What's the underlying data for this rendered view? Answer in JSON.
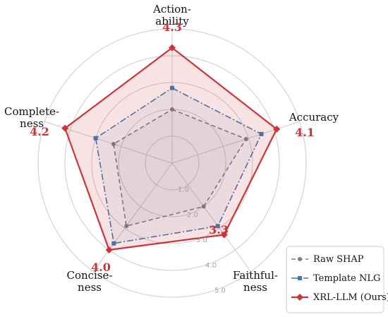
{
  "chart_data": {
    "type": "radar",
    "axes": [
      {
        "lines": [
          "Action-",
          "ability"
        ]
      },
      {
        "lines": [
          "Accuracy"
        ]
      },
      {
        "lines": [
          "Faithful-",
          "ness"
        ]
      },
      {
        "lines": [
          "Concise-",
          "ness"
        ]
      },
      {
        "lines": [
          "Complete-",
          "ness"
        ]
      }
    ],
    "r_ticks": [
      "1.0",
      "2.0",
      "3.0",
      "4.0",
      "5.0"
    ],
    "r_max": 5.0,
    "series": [
      {
        "name": "Raw SHAP",
        "color": "#7f7f7f",
        "marker": "circle",
        "dash": "6,4",
        "values": [
          2.0,
          2.9,
          2.0,
          2.9,
          2.3
        ]
      },
      {
        "name": "Template NLG",
        "color": "#3f78b5",
        "marker": "square",
        "dash": "9,3,2,3",
        "values": [
          2.8,
          3.5,
          2.9,
          3.7,
          3.0
        ]
      },
      {
        "name": "XRL-LLM (Ours)",
        "color": "#c8363b",
        "marker": "diamond",
        "dash": "",
        "values": [
          4.3,
          4.1,
          3.3,
          4.0,
          4.2
        ]
      }
    ],
    "value_labels": [
      "4.3",
      "4.1",
      "3.3",
      "4.0",
      "4.2"
    ],
    "legend_position": "bottom-right",
    "grid": true
  }
}
